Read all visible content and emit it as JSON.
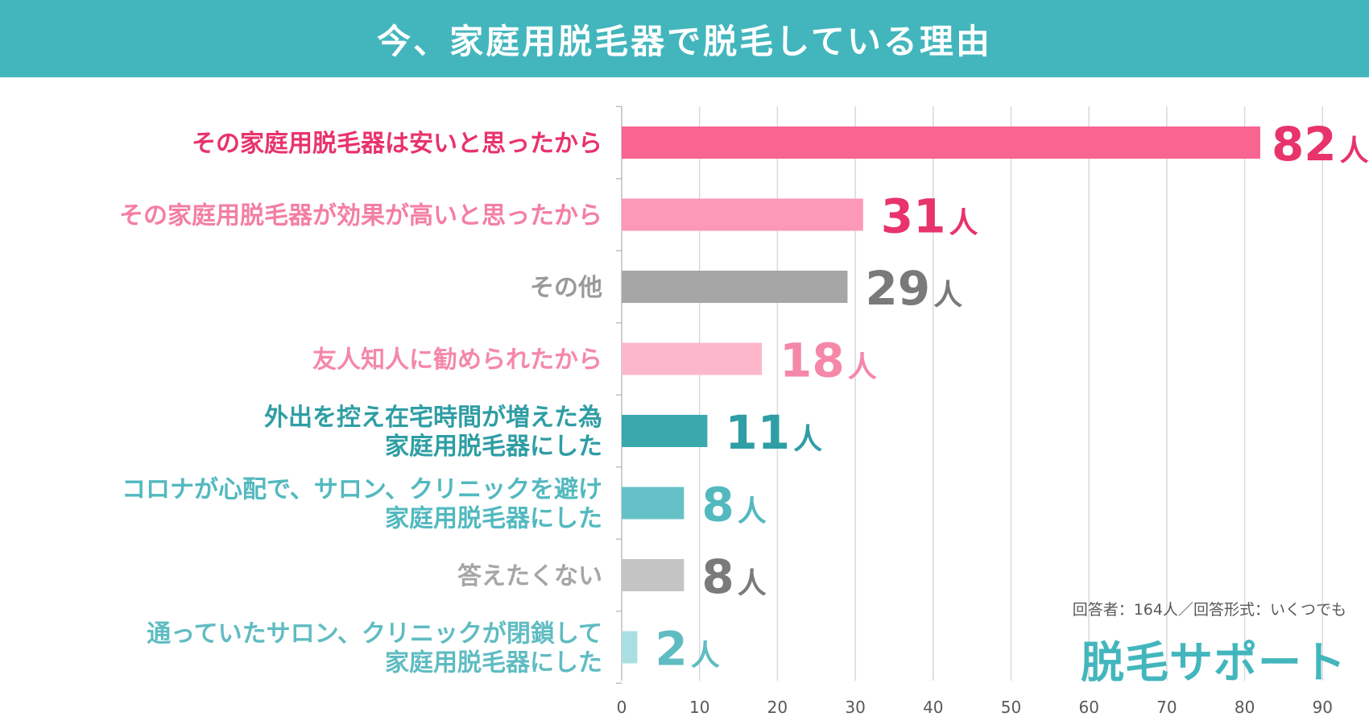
{
  "header": {
    "title": "今、家庭用脱毛器で脱毛している理由"
  },
  "note": "回答者：164人／回答形式：いくつでも",
  "logo": "脱毛サポート",
  "unit": "人",
  "chart_data": {
    "type": "bar",
    "orientation": "horizontal",
    "title": "今、家庭用脱毛器で脱毛している理由",
    "xlim": [
      0,
      90
    ],
    "x_ticks": [
      0,
      10,
      20,
      30,
      40,
      50,
      60,
      70,
      80,
      90
    ],
    "grid": true,
    "value_unit": "人",
    "categories": [
      {
        "lines": [
          "その家庭用脱毛器は安いと思ったから"
        ],
        "value": 82,
        "bar_color": "#f76590",
        "label_color": "#e8336b",
        "value_color": "#e8336b"
      },
      {
        "lines": [
          "その家庭用脱毛器が効果が高いと思ったから"
        ],
        "value": 31,
        "bar_color": "#fb99b7",
        "label_color": "#f47fa3",
        "value_color": "#e8336b"
      },
      {
        "lines": [
          "その他"
        ],
        "value": 29,
        "bar_color": "#a6a6a6",
        "label_color": "#9a9a9a",
        "value_color": "#7a7a7a"
      },
      {
        "lines": [
          "友人知人に勧められたから"
        ],
        "value": 18,
        "bar_color": "#fcb7cb",
        "label_color": "#f588a9",
        "value_color": "#f588a9"
      },
      {
        "lines": [
          "外出を控え在宅時間が増えた為",
          "家庭用脱毛器にした"
        ],
        "value": 11,
        "bar_color": "#3aa9ad",
        "label_color": "#2f9ea4",
        "value_color": "#2f9ea4"
      },
      {
        "lines": [
          "コロナが心配で、サロン、クリニックを避け",
          "家庭用脱毛器にした"
        ],
        "value": 8,
        "bar_color": "#65c1c7",
        "label_color": "#52b9bf",
        "value_color": "#52b9bf"
      },
      {
        "lines": [
          "答えたくない"
        ],
        "value": 8,
        "bar_color": "#c4c4c4",
        "label_color": "#a6a6a6",
        "value_color": "#7a7a7a"
      },
      {
        "lines": [
          "通っていたサロン、クリニックが閉鎖して",
          "家庭用脱毛器にした"
        ],
        "value": 2,
        "bar_color": "#a9dfe2",
        "label_color": "#5fbcc2",
        "value_color": "#5fbcc2"
      }
    ]
  }
}
